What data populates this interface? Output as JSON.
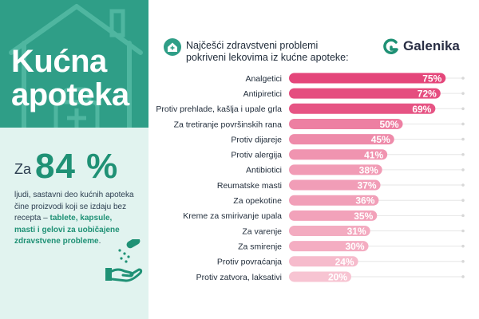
{
  "left_panel": {
    "title_line1": "Kućna",
    "title_line2": "apoteka",
    "stat_prefix": "Za",
    "stat_value": "84 %",
    "stat_text_1": "ljudi, sastavni deo kućnih apoteka čine proizvodi koji se izdaju bez recepta – ",
    "stat_text_highlight": "tablete, kapsule, masti i gelovi za uobičajene zdravstvene probleme",
    "stat_text_2": ".",
    "icons": [
      "house-icon",
      "hand-pills-icon"
    ]
  },
  "header": {
    "title_line1": "Najčešći zdravstveni problemi",
    "title_line2": "pokriveni lekovima iz kućne apoteke:",
    "icon": "house-cross-icon"
  },
  "brand": {
    "name": "Galenika",
    "logo_icon": "galenika-g-logo-icon"
  },
  "colors": {
    "teal_dark": "#2f9e87",
    "teal_text": "#1f9175",
    "mint_bg": "#e1f3ef",
    "bar_dark": "#e4467a",
    "bar_light": "#f7c4d2",
    "track": "#e8e8e8",
    "text": "#1e2a38"
  },
  "chart_data": {
    "type": "bar",
    "orientation": "horizontal",
    "title": "Najčešći zdravstveni problemi pokriveni lekovima iz kućne apoteke:",
    "xlabel": "",
    "ylabel": "",
    "xlim": [
      0,
      100
    ],
    "value_suffix": "%",
    "categories": [
      "Analgetici",
      "Antipiretici",
      "Protiv prehlade, kašlja i upale grla",
      "Za tretiranje površinskih rana",
      "Protiv dijareje",
      "Protiv alergija",
      "Antibiotici",
      "Reumatske masti",
      "Za opekotine",
      "Kreme za smirivanje upala",
      "Za varenje",
      "Za smirenje",
      "Protiv povraćanja",
      "Protiv zatvora, laksativi"
    ],
    "values": [
      75,
      72,
      69,
      50,
      45,
      41,
      38,
      37,
      36,
      35,
      31,
      30,
      24,
      20
    ],
    "grid": false,
    "legend": "none"
  }
}
